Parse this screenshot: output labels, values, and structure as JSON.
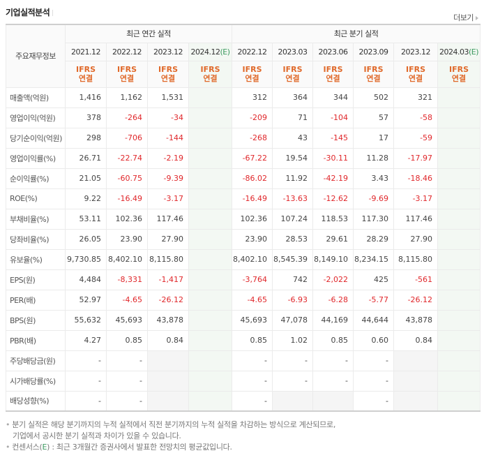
{
  "header": {
    "title": "기업실적분석",
    "more_label": "더보기"
  },
  "table": {
    "row_header_label": "주요재무정보",
    "groups": [
      {
        "label": "최근 연간 실적"
      },
      {
        "label": "최근 분기 실적"
      }
    ],
    "periods": [
      {
        "date": "2021.12",
        "estimate": "",
        "basis_1": "IFRS",
        "basis_2": "연결"
      },
      {
        "date": "2022.12",
        "estimate": "",
        "basis_1": "IFRS",
        "basis_2": "연결"
      },
      {
        "date": "2023.12",
        "estimate": "",
        "basis_1": "IFRS",
        "basis_2": "연결"
      },
      {
        "date": "2024.12",
        "estimate": "(E)",
        "basis_1": "IFRS",
        "basis_2": "연결"
      },
      {
        "date": "2022.12",
        "estimate": "",
        "basis_1": "IFRS",
        "basis_2": "연결"
      },
      {
        "date": "2023.03",
        "estimate": "",
        "basis_1": "IFRS",
        "basis_2": "연결"
      },
      {
        "date": "2023.06",
        "estimate": "",
        "basis_1": "IFRS",
        "basis_2": "연결"
      },
      {
        "date": "2023.09",
        "estimate": "",
        "basis_1": "IFRS",
        "basis_2": "연결"
      },
      {
        "date": "2023.12",
        "estimate": "",
        "basis_1": "IFRS",
        "basis_2": "연결"
      },
      {
        "date": "2024.03",
        "estimate": "(E)",
        "basis_1": "IFRS",
        "basis_2": "연결"
      }
    ],
    "rows": [
      {
        "label": "매출액(억원)",
        "values": [
          "1,416",
          "1,162",
          "1,531",
          "",
          "312",
          "364",
          "344",
          "502",
          "321",
          ""
        ]
      },
      {
        "label": "영업이익(억원)",
        "values": [
          "378",
          "-264",
          "-34",
          "",
          "-209",
          "71",
          "-104",
          "57",
          "-58",
          ""
        ]
      },
      {
        "label": "당기순이익(억원)",
        "values": [
          "298",
          "-706",
          "-144",
          "",
          "-268",
          "43",
          "-145",
          "17",
          "-59",
          ""
        ]
      },
      {
        "label": "영업이익률(%)",
        "values": [
          "26.71",
          "-22.74",
          "-2.19",
          "",
          "-67.22",
          "19.54",
          "-30.11",
          "11.28",
          "-17.97",
          ""
        ]
      },
      {
        "label": "순이익률(%)",
        "values": [
          "21.05",
          "-60.75",
          "-9.39",
          "",
          "-86.02",
          "11.92",
          "-42.19",
          "3.43",
          "-18.46",
          ""
        ]
      },
      {
        "label": "ROE(%)",
        "values": [
          "9.22",
          "-16.49",
          "-3.17",
          "",
          "-16.49",
          "-13.63",
          "-12.62",
          "-9.69",
          "-3.17",
          ""
        ]
      },
      {
        "label": "부채비율(%)",
        "values": [
          "53.11",
          "102.36",
          "117.46",
          "",
          "102.36",
          "107.24",
          "118.53",
          "117.30",
          "117.46",
          ""
        ]
      },
      {
        "label": "당좌비율(%)",
        "values": [
          "26.05",
          "23.90",
          "27.90",
          "",
          "23.90",
          "28.53",
          "29.61",
          "28.29",
          "27.90",
          ""
        ]
      },
      {
        "label": "유보율(%)",
        "values": [
          "9,730.85",
          "8,402.10",
          "8,115.80",
          "",
          "8,402.10",
          "8,545.39",
          "8,149.10",
          "8,234.15",
          "8,115.80",
          ""
        ]
      },
      {
        "label": "EPS(원)",
        "values": [
          "4,484",
          "-8,331",
          "-1,417",
          "",
          "-3,764",
          "742",
          "-2,022",
          "425",
          "-561",
          ""
        ]
      },
      {
        "label": "PER(배)",
        "values": [
          "52.97",
          "-4.65",
          "-26.12",
          "",
          "-4.65",
          "-6.93",
          "-6.28",
          "-5.77",
          "-26.12",
          ""
        ]
      },
      {
        "label": "BPS(원)",
        "values": [
          "55,632",
          "45,693",
          "43,878",
          "",
          "45,693",
          "47,078",
          "44,169",
          "44,644",
          "43,878",
          ""
        ]
      },
      {
        "label": "PBR(배)",
        "values": [
          "4.27",
          "0.85",
          "0.84",
          "",
          "0.85",
          "1.02",
          "0.85",
          "0.60",
          "0.84",
          ""
        ]
      },
      {
        "label": "주당배당금(원)",
        "values": [
          "-",
          "-",
          null,
          "",
          "-",
          "-",
          "-",
          "-",
          null,
          ""
        ]
      },
      {
        "label": "시가배당률(%)",
        "values": [
          "-",
          "-",
          null,
          "",
          "-",
          "-",
          "-",
          "-",
          null,
          ""
        ]
      },
      {
        "label": "배당성향(%)",
        "values": [
          "-",
          "-",
          null,
          "",
          "-",
          null,
          null,
          "-",
          null,
          ""
        ]
      }
    ]
  },
  "notes": {
    "line1": "분기 실적은 해당 분기까지의 누적 실적에서 직전 분기까지의 누적 실적을 차감하는 방식으로 계산되므로,",
    "line2": "기업에서 공시한 분기 실적과 차이가 있을 수 있습니다.",
    "line3_prefix": "컨센서스(",
    "line3_e": "E",
    "line3_suffix": ") : 최근 3개월간 증권사에서 발표한 전망치의 평균값입니다."
  },
  "colors": {
    "negative": "#e0262a",
    "ifrs": "#e0692a",
    "estimate": "#3c9a5f",
    "estimate_bg": "#f3f8f3"
  }
}
